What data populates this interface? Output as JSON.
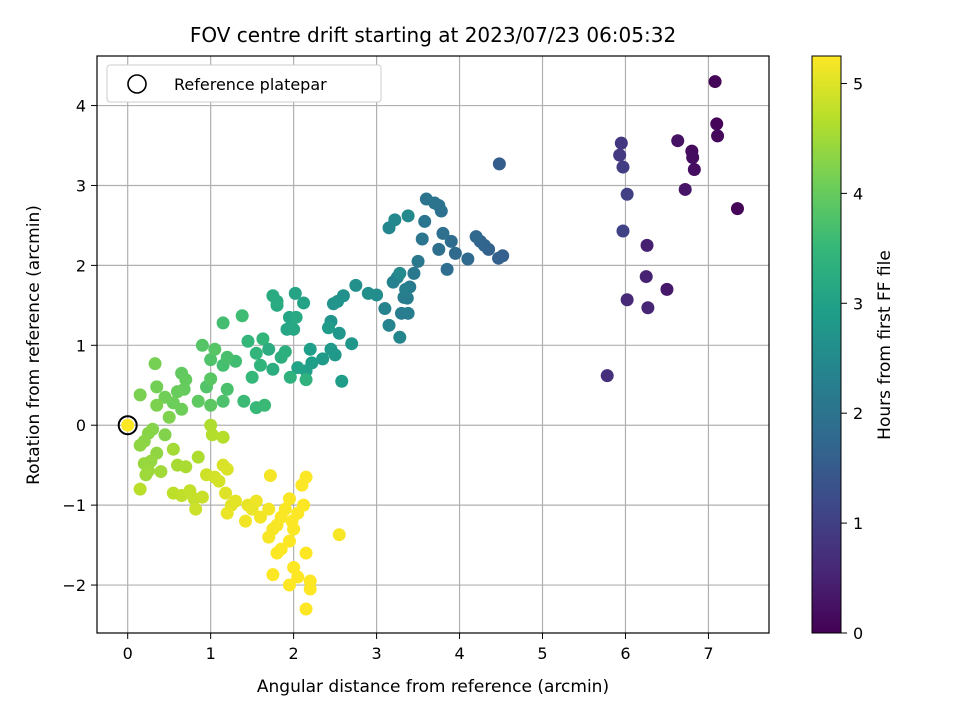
{
  "chart_data": {
    "type": "scatter",
    "title": "FOV centre drift starting at 2023/07/23 06:05:32",
    "xlabel": "Angular distance from reference (arcmin)",
    "ylabel": "Rotation from reference (arcmin)",
    "xlim": [
      -0.37,
      7.73
    ],
    "ylim": [
      -2.6,
      4.62
    ],
    "xticks": [
      0,
      1,
      2,
      3,
      4,
      5,
      6,
      7
    ],
    "yticks": [
      -2,
      -1,
      0,
      1,
      2,
      3,
      4
    ],
    "grid": true,
    "legend": {
      "placement": "top-left",
      "entries": [
        "Reference platepar"
      ]
    },
    "reference_point": {
      "x": 0,
      "y": 0
    },
    "colorbar": {
      "label": "Hours from first FF file",
      "colormap": "viridis",
      "range": [
        0,
        5.25
      ],
      "ticks": [
        0,
        1,
        2,
        3,
        4,
        5
      ]
    },
    "colormap_stops": [
      "#440154",
      "#482878",
      "#3e4989",
      "#31688e",
      "#26828e",
      "#1f9e89",
      "#35b779",
      "#6ece58",
      "#b5de2b",
      "#fde725"
    ],
    "points": [
      [
        7.08,
        4.3,
        0.05
      ],
      [
        7.1,
        3.77,
        0.08
      ],
      [
        7.11,
        3.62,
        0.1
      ],
      [
        6.8,
        3.43,
        0.15
      ],
      [
        6.81,
        3.35,
        0.18
      ],
      [
        6.83,
        3.2,
        0.2
      ],
      [
        6.63,
        3.56,
        0.25
      ],
      [
        6.72,
        2.95,
        0.3
      ],
      [
        7.35,
        2.71,
        0.05
      ],
      [
        6.5,
        1.7,
        0.35
      ],
      [
        6.25,
        1.86,
        0.5
      ],
      [
        6.26,
        2.25,
        0.45
      ],
      [
        6.27,
        1.47,
        0.55
      ],
      [
        6.02,
        1.57,
        0.6
      ],
      [
        5.78,
        0.62,
        0.7
      ],
      [
        5.95,
        3.53,
        0.85
      ],
      [
        5.93,
        3.38,
        0.9
      ],
      [
        5.97,
        3.23,
        0.95
      ],
      [
        6.02,
        2.89,
        1.0
      ],
      [
        5.97,
        2.43,
        1.05
      ],
      [
        4.48,
        3.27,
        1.55
      ],
      [
        4.52,
        2.12,
        1.6
      ],
      [
        4.47,
        2.09,
        1.62
      ],
      [
        4.35,
        2.2,
        1.65
      ],
      [
        4.3,
        2.25,
        1.7
      ],
      [
        4.25,
        2.3,
        1.72
      ],
      [
        4.2,
        2.36,
        1.75
      ],
      [
        4.1,
        2.08,
        1.8
      ],
      [
        3.95,
        2.15,
        1.82
      ],
      [
        3.9,
        2.3,
        1.85
      ],
      [
        3.85,
        1.95,
        1.88
      ],
      [
        3.75,
        2.2,
        1.9
      ],
      [
        3.8,
        2.4,
        1.92
      ],
      [
        3.78,
        2.68,
        1.95
      ],
      [
        3.75,
        2.75,
        1.97
      ],
      [
        3.7,
        2.78,
        2.0
      ],
      [
        3.6,
        2.83,
        2.02
      ],
      [
        3.58,
        2.55,
        2.05
      ],
      [
        3.55,
        2.33,
        2.07
      ],
      [
        3.5,
        2.05,
        2.1
      ],
      [
        3.45,
        1.9,
        2.12
      ],
      [
        3.4,
        1.73,
        2.15
      ],
      [
        3.37,
        1.59,
        2.17
      ],
      [
        3.33,
        1.6,
        2.2
      ],
      [
        3.3,
        1.4,
        2.22
      ],
      [
        3.38,
        1.4,
        2.25
      ],
      [
        3.35,
        1.7,
        2.27
      ],
      [
        3.25,
        1.85,
        2.3
      ],
      [
        3.2,
        1.79,
        2.32
      ],
      [
        3.1,
        1.46,
        2.35
      ],
      [
        3.15,
        1.25,
        2.37
      ],
      [
        3.28,
        1.1,
        2.4
      ],
      [
        3.15,
        2.47,
        2.42
      ],
      [
        3.22,
        2.57,
        2.45
      ],
      [
        3.38,
        2.62,
        2.47
      ],
      [
        3.28,
        1.9,
        2.5
      ],
      [
        3.0,
        1.63,
        2.55
      ],
      [
        2.9,
        1.65,
        2.6
      ],
      [
        2.75,
        1.75,
        2.62
      ],
      [
        2.6,
        1.62,
        2.65
      ],
      [
        2.53,
        1.55,
        2.68
      ],
      [
        2.48,
        1.52,
        2.7
      ],
      [
        2.45,
        1.3,
        2.72
      ],
      [
        2.55,
        1.15,
        2.75
      ],
      [
        2.7,
        1.02,
        2.78
      ],
      [
        2.5,
        0.88,
        2.8
      ],
      [
        2.45,
        0.95,
        2.82
      ],
      [
        2.35,
        0.83,
        2.85
      ],
      [
        2.42,
        1.22,
        2.87
      ],
      [
        2.58,
        0.55,
        2.9
      ],
      [
        2.2,
        0.95,
        2.92
      ],
      [
        2.22,
        0.78,
        2.95
      ],
      [
        2.15,
        0.68,
        2.97
      ],
      [
        2.05,
        0.72,
        3.0
      ],
      [
        2.12,
        1.53,
        3.02
      ],
      [
        2.02,
        1.65,
        3.05
      ],
      [
        1.95,
        1.35,
        3.07
      ],
      [
        1.92,
        1.2,
        3.1
      ],
      [
        2.0,
        1.2,
        3.12
      ],
      [
        2.03,
        1.35,
        3.15
      ],
      [
        1.8,
        1.5,
        3.17
      ],
      [
        1.75,
        1.62,
        3.2
      ],
      [
        1.8,
        1.55,
        3.22
      ],
      [
        1.7,
        0.95,
        3.25
      ],
      [
        1.75,
        0.7,
        3.27
      ],
      [
        1.85,
        0.85,
        3.3
      ],
      [
        1.9,
        0.92,
        3.32
      ],
      [
        1.96,
        0.6,
        3.35
      ],
      [
        2.15,
        0.57,
        3.37
      ],
      [
        1.6,
        0.75,
        3.4
      ],
      [
        1.55,
        0.9,
        3.42
      ],
      [
        1.63,
        1.08,
        3.45
      ],
      [
        1.45,
        1.05,
        3.47
      ],
      [
        1.5,
        0.6,
        3.5
      ],
      [
        1.55,
        0.22,
        3.52
      ],
      [
        1.65,
        0.25,
        3.55
      ],
      [
        1.4,
        0.3,
        3.57
      ],
      [
        1.38,
        1.37,
        3.6
      ],
      [
        1.3,
        0.8,
        3.62
      ],
      [
        1.15,
        1.28,
        3.65
      ],
      [
        1.15,
        0.75,
        3.67
      ],
      [
        1.2,
        0.85,
        3.7
      ],
      [
        1.2,
        0.45,
        3.72
      ],
      [
        1.15,
        0.3,
        3.75
      ],
      [
        1.0,
        0.82,
        3.77
      ],
      [
        0.95,
        0.48,
        3.8
      ],
      [
        0.9,
        1.0,
        3.82
      ],
      [
        1.05,
        0.95,
        3.85
      ],
      [
        1.0,
        0.58,
        3.87
      ],
      [
        1.0,
        0.25,
        3.9
      ],
      [
        0.85,
        0.3,
        3.92
      ],
      [
        0.65,
        0.65,
        3.95
      ],
      [
        0.7,
        0.57,
        3.97
      ],
      [
        0.68,
        0.45,
        4.0
      ],
      [
        0.6,
        0.42,
        4.02
      ],
      [
        0.55,
        0.28,
        4.05
      ],
      [
        0.65,
        0.2,
        4.07
      ],
      [
        0.45,
        0.35,
        4.1
      ],
      [
        0.35,
        0.48,
        4.12
      ],
      [
        0.33,
        0.77,
        4.15
      ],
      [
        0.15,
        0.38,
        4.17
      ],
      [
        0.35,
        0.25,
        4.2
      ],
      [
        0.5,
        0.1,
        4.22
      ],
      [
        0.45,
        -0.12,
        4.25
      ],
      [
        0.3,
        -0.05,
        4.27
      ],
      [
        0.25,
        -0.1,
        4.3
      ],
      [
        0.2,
        -0.2,
        4.32
      ],
      [
        0.15,
        -0.25,
        4.35
      ],
      [
        0.35,
        -0.35,
        4.37
      ],
      [
        0.28,
        -0.45,
        4.4
      ],
      [
        0.2,
        -0.48,
        4.42
      ],
      [
        0.25,
        -0.57,
        4.45
      ],
      [
        0.22,
        -0.62,
        4.47
      ],
      [
        0.4,
        -0.58,
        4.5
      ],
      [
        0.55,
        -0.3,
        4.52
      ],
      [
        0.6,
        -0.5,
        4.55
      ],
      [
        0.7,
        -0.52,
        4.57
      ],
      [
        0.85,
        -0.4,
        4.6
      ],
      [
        1.0,
        0.0,
        4.62
      ],
      [
        1.02,
        -0.12,
        4.65
      ],
      [
        1.15,
        -0.15,
        4.67
      ],
      [
        0.15,
        -0.8,
        4.7
      ],
      [
        0.55,
        -0.85,
        4.72
      ],
      [
        0.65,
        -0.88,
        4.75
      ],
      [
        0.75,
        -0.82,
        4.77
      ],
      [
        0.8,
        -0.92,
        4.8
      ],
      [
        0.9,
        -0.9,
        4.82
      ],
      [
        0.82,
        -1.05,
        4.85
      ],
      [
        0.95,
        -0.62,
        4.87
      ],
      [
        1.05,
        -0.65,
        4.9
      ],
      [
        1.1,
        -0.7,
        4.92
      ],
      [
        1.15,
        -0.5,
        4.95
      ],
      [
        1.2,
        -0.55,
        4.97
      ],
      [
        1.18,
        -0.85,
        5.0
      ],
      [
        1.25,
        -1.0,
        5.02
      ],
      [
        1.3,
        -0.95,
        5.05
      ],
      [
        1.45,
        -1.0,
        5.07
      ],
      [
        1.5,
        -1.05,
        5.1
      ],
      [
        1.55,
        -0.95,
        5.12
      ],
      [
        1.2,
        -1.1,
        5.1
      ],
      [
        1.6,
        -1.15,
        5.15
      ],
      [
        1.42,
        -1.2,
        5.15
      ],
      [
        1.7,
        -1.05,
        5.17
      ],
      [
        1.72,
        -0.63,
        5.18
      ],
      [
        1.75,
        -1.3,
        5.2
      ],
      [
        1.7,
        -1.4,
        5.2
      ],
      [
        1.8,
        -1.25,
        5.2
      ],
      [
        1.85,
        -1.15,
        5.22
      ],
      [
        1.9,
        -1.05,
        5.22
      ],
      [
        1.95,
        -0.92,
        5.22
      ],
      [
        1.98,
        -1.2,
        5.23
      ],
      [
        2.05,
        -1.1,
        5.23
      ],
      [
        2.1,
        -0.75,
        5.23
      ],
      [
        2.15,
        -0.65,
        5.23
      ],
      [
        2.12,
        -1.0,
        5.24
      ],
      [
        2.0,
        -1.3,
        5.24
      ],
      [
        1.95,
        -1.45,
        5.24
      ],
      [
        1.85,
        -1.55,
        5.24
      ],
      [
        1.8,
        -1.6,
        5.24
      ],
      [
        1.75,
        -1.87,
        5.24
      ],
      [
        2.0,
        -1.78,
        5.25
      ],
      [
        2.05,
        -1.9,
        5.25
      ],
      [
        1.95,
        -2.0,
        5.25
      ],
      [
        2.15,
        -1.6,
        5.25
      ],
      [
        2.2,
        -1.95,
        5.25
      ],
      [
        2.2,
        -2.05,
        5.25
      ],
      [
        2.15,
        -2.3,
        5.25
      ],
      [
        2.55,
        -1.37,
        5.2
      ]
    ]
  }
}
